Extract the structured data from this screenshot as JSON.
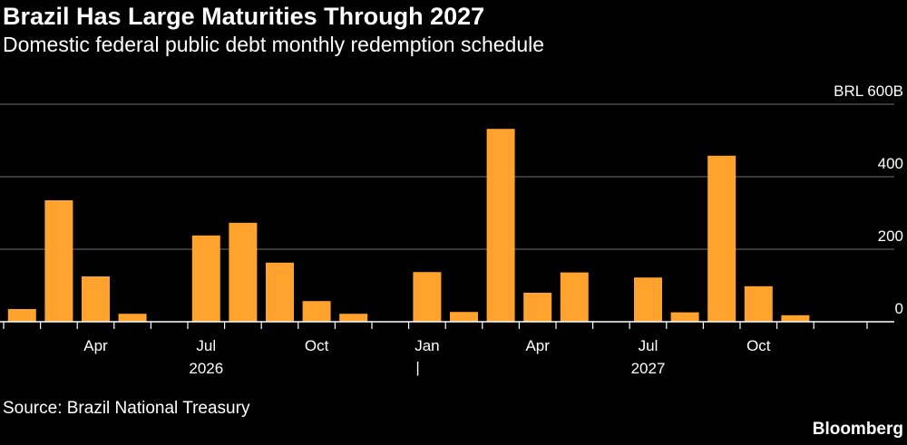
{
  "header": {
    "title": "Brazil Has Large Maturities Through 2027",
    "subtitle": "Domestic federal public debt monthly redemption schedule"
  },
  "footer": {
    "source": "Source: Brazil National Treasury",
    "brand": "Bloomberg"
  },
  "colors": {
    "bar": "#FFA32E",
    "grid": "#5a5a5a",
    "axis": "#ffffff",
    "background": "#000000"
  },
  "chart_data": {
    "type": "bar",
    "categories": [
      "Feb 2026",
      "Mar 2026",
      "Apr 2026",
      "May 2026",
      "Jun 2026",
      "Jul 2026",
      "Aug 2026",
      "Sep 2026",
      "Oct 2026",
      "Nov 2026",
      "Dec 2026",
      "Jan 2027",
      "Feb 2027",
      "Mar 2027",
      "Apr 2027",
      "May 2027",
      "Jun 2027",
      "Jul 2027",
      "Aug 2027",
      "Sep 2027",
      "Oct 2027",
      "Nov 2027",
      "Dec 2027"
    ],
    "values": [
      35,
      335,
      125,
      22,
      0,
      238,
      273,
      163,
      57,
      22,
      0,
      137,
      27,
      532,
      80,
      136,
      0,
      122,
      26,
      458,
      98,
      18,
      0
    ],
    "ylim": [
      0,
      600
    ],
    "yticks": [
      {
        "value": 600,
        "label": "BRL 600B"
      },
      {
        "value": 400,
        "label": "400"
      },
      {
        "value": 200,
        "label": "200"
      },
      {
        "value": 0,
        "label": "0"
      }
    ],
    "xtick_labels": [
      {
        "index": 2,
        "label": "Apr"
      },
      {
        "index": 5,
        "label": "Jul"
      },
      {
        "index": 8,
        "label": "Oct"
      },
      {
        "index": 11,
        "label": "Jan"
      },
      {
        "index": 14,
        "label": "Apr"
      },
      {
        "index": 17,
        "label": "Jul"
      },
      {
        "index": 20,
        "label": "Oct"
      }
    ],
    "year_labels": [
      {
        "center_index": 5,
        "label": "2026"
      },
      {
        "center_index": 17,
        "label": "2027"
      }
    ],
    "year_separator": "|",
    "grid": true
  }
}
